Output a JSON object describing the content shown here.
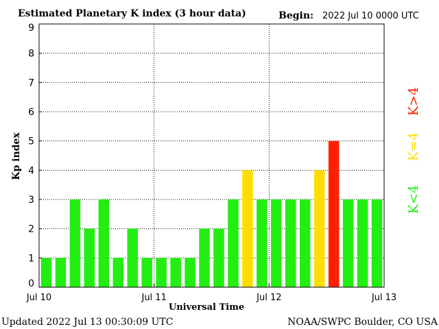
{
  "header": {
    "title": "Estimated Planetary K index (3 hour data)",
    "begin_label": "Begin:",
    "begin_value": "2022 Jul 10 0000 UTC"
  },
  "footer": {
    "updated": "Updated 2022 Jul 13 00:30:09 UTC",
    "source": "NOAA/SWPC Boulder, CO USA"
  },
  "legend": {
    "low": {
      "label": "K<4",
      "color": "#22ee11"
    },
    "mid": {
      "label": "K=4",
      "color": "#ffdd00"
    },
    "high": {
      "label": "K>4",
      "color": "#ff2200"
    }
  },
  "chart_data": {
    "type": "bar",
    "xlabel": "Universal Time",
    "ylabel": "Kp index",
    "ylim": [
      0,
      9
    ],
    "yticks": [
      "0",
      "1",
      "2",
      "3",
      "4",
      "5",
      "6",
      "7",
      "8",
      "9"
    ],
    "xticks": [
      "Jul 10",
      "Jul 11",
      "Jul 12",
      "Jul 13"
    ],
    "grid": true,
    "values": [
      1,
      1,
      3,
      2,
      3,
      1,
      2,
      1,
      1,
      1,
      1,
      2,
      2,
      3,
      4,
      3,
      3,
      3,
      3,
      4,
      5,
      3,
      3,
      3
    ]
  }
}
